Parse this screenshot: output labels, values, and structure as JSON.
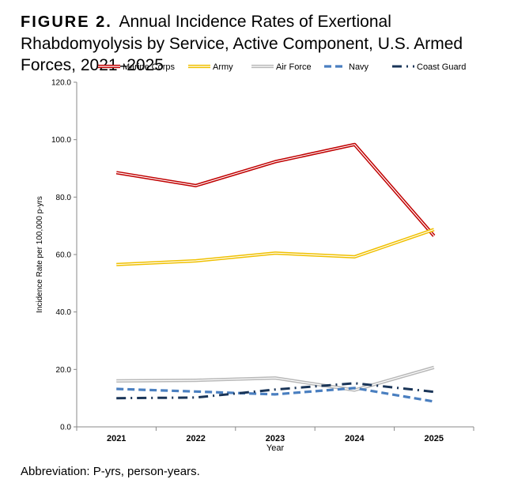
{
  "title": {
    "figure_label": "FIGURE 2.",
    "text": "Annual Incidence Rates of Exertional Rhabdomyolysis by Service, Active Component, U.S. Armed Forces, 2021–2025"
  },
  "footnote": "Abbreviation: P-yrs, person-years.",
  "chart_data": {
    "type": "line",
    "title": "",
    "xlabel": "Year",
    "ylabel": "Incidence Rate per 100,000 p-yrs",
    "categories": [
      "2021",
      "2022",
      "2023",
      "2024",
      "2025"
    ],
    "ylim": [
      0,
      120
    ],
    "yticks": [
      "0.0",
      "20.0",
      "40.0",
      "60.0",
      "80.0",
      "100.0",
      "120.0"
    ],
    "grid": false,
    "legend_position": "top",
    "series": [
      {
        "name": "Marine Corps",
        "values": [
          88.5,
          84.0,
          92.3,
          98.3,
          66.5
        ],
        "color": "#c00000",
        "style": "double"
      },
      {
        "name": "Army",
        "values": [
          56.5,
          57.8,
          60.5,
          59.2,
          68.7
        ],
        "color": "#f0c000",
        "style": "double"
      },
      {
        "name": "Air Force",
        "values": [
          16.0,
          16.2,
          17.0,
          12.8,
          20.7
        ],
        "color": "#b8b8b8",
        "style": "double"
      },
      {
        "name": "Navy",
        "values": [
          13.2,
          12.3,
          11.3,
          13.5,
          8.8
        ],
        "color": "#4a7fc0",
        "style": "dashed"
      },
      {
        "name": "Coast Guard",
        "values": [
          10.0,
          10.2,
          13.0,
          15.2,
          12.2
        ],
        "color": "#1a3558",
        "style": "dashdot"
      }
    ]
  }
}
